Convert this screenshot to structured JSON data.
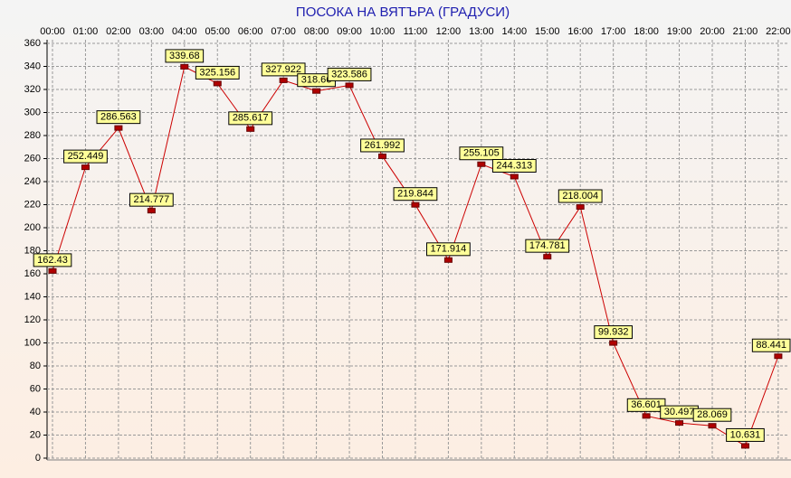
{
  "chart_data": {
    "type": "line",
    "title": "ПОСОКА НА ВЯТЪРА    (ГРАДУСИ)",
    "categories": [
      "00:00",
      "01:00",
      "02:00",
      "03:00",
      "04:00",
      "05:00",
      "06:00",
      "07:00",
      "08:00",
      "09:00",
      "10:00",
      "11:00",
      "12:00",
      "13:00",
      "14:00",
      "15:00",
      "16:00",
      "17:00",
      "18:00",
      "19:00",
      "20:00",
      "21:00",
      "22:00"
    ],
    "values": [
      162.43,
      252.449,
      286.563,
      214.777,
      339.68,
      325.156,
      285.617,
      327.922,
      318.66,
      323.586,
      261.992,
      219.844,
      171.914,
      255.105,
      244.313,
      174.781,
      218.004,
      99.932,
      36.601,
      30.497,
      28.069,
      10.631,
      88.441
    ],
    "color": "#cc0000",
    "ylim": [
      0,
      360
    ],
    "yticks": [
      0,
      20,
      40,
      60,
      80,
      100,
      120,
      140,
      160,
      180,
      200,
      220,
      240,
      260,
      280,
      300,
      320,
      340,
      360
    ],
    "grid": true
  }
}
